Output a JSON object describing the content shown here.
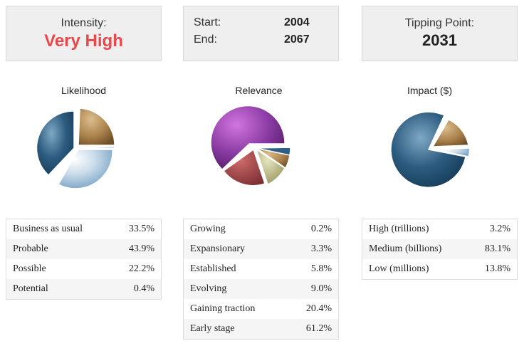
{
  "intensity": {
    "label": "Intensity:",
    "value": "Very High"
  },
  "period": {
    "start_label": "Start:",
    "start_value": "2004",
    "end_label": "End:",
    "end_value": "2067"
  },
  "tipping": {
    "label": "Tipping Point:",
    "value": "2031"
  },
  "likelihood": {
    "title": "Likelihood",
    "rows": [
      {
        "label": "Business as usual",
        "value": "33.5%"
      },
      {
        "label": "Probable",
        "value": "43.9%"
      },
      {
        "label": "Possible",
        "value": "22.2%"
      },
      {
        "label": "Potential",
        "value": "0.4%"
      }
    ]
  },
  "relevance": {
    "title": "Relevance",
    "rows": [
      {
        "label": "Growing",
        "value": "0.2%"
      },
      {
        "label": "Expansionary",
        "value": "3.3%"
      },
      {
        "label": "Established",
        "value": "5.8%"
      },
      {
        "label": "Evolving",
        "value": "9.0%"
      },
      {
        "label": "Gaining traction",
        "value": "20.4%"
      },
      {
        "label": "Early stage",
        "value": "61.2%"
      }
    ]
  },
  "impact": {
    "title": "Impact ($)",
    "rows": [
      {
        "label": "High (trillions)",
        "value": "3.2%"
      },
      {
        "label": "Medium (billions)",
        "value": "83.1%"
      },
      {
        "label": "Low (millions)",
        "value": "13.8%"
      }
    ]
  }
}
